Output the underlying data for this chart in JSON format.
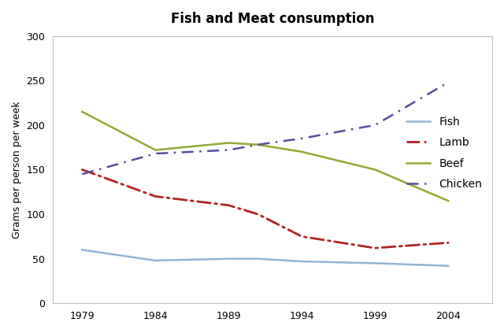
{
  "title": "Fish and Meat consumption",
  "ylabel": "Grams per person per week",
  "years": [
    1979,
    1984,
    1989,
    1991,
    1994,
    1999,
    2004
  ],
  "x_plot_years": [
    1979,
    1984,
    1989,
    1991,
    1994,
    1999,
    2004
  ],
  "fish": [
    60,
    48,
    50,
    50,
    47,
    45,
    42
  ],
  "lamb": [
    150,
    120,
    110,
    100,
    75,
    62,
    68
  ],
  "beef": [
    215,
    172,
    180,
    178,
    170,
    150,
    115
  ],
  "chicken": [
    145,
    168,
    172,
    178,
    185,
    200,
    248
  ],
  "fish_color": "#92b4d4",
  "lamb_color": "#b22222",
  "beef_color": "#8faa36",
  "chicken_color": "#5050a0",
  "ylim": [
    0,
    300
  ],
  "yticks": [
    0,
    50,
    100,
    150,
    200,
    250,
    300
  ],
  "xticks": [
    1979,
    1984,
    1989,
    1994,
    1999,
    2004
  ],
  "title_fontsize": 12,
  "axis_fontsize": 9,
  "legend_fontsize": 10,
  "background_color": "#ffffff",
  "plot_bg": "#ffffff",
  "border_color": "#c0c0c0"
}
